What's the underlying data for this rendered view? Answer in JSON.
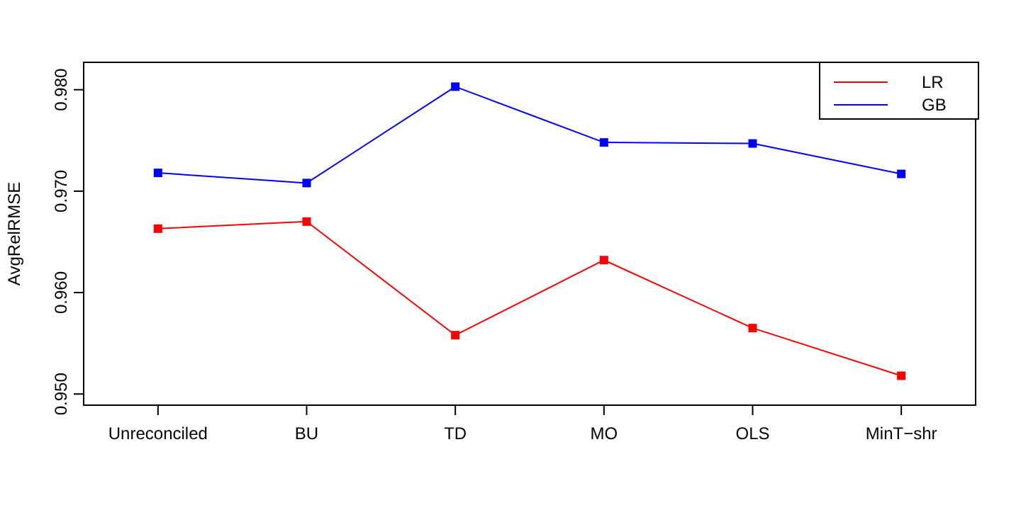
{
  "chart_data": {
    "type": "line",
    "ylabel": "AvgRelRMSE",
    "categories": [
      "Unreconciled",
      "BU",
      "TD",
      "MO",
      "OLS",
      "MinT−shr"
    ],
    "series": [
      {
        "name": "LR",
        "color": "#ff0000",
        "values": [
          0.9663,
          0.967,
          0.9558,
          0.9632,
          0.9565,
          0.9518
        ]
      },
      {
        "name": "GB",
        "color": "#0000ff",
        "values": [
          0.9718,
          0.9708,
          0.9803,
          0.9748,
          0.9747,
          0.9717
        ]
      }
    ],
    "ylim": [
      0.9489,
      0.9827
    ],
    "yticks": [
      {
        "value": 0.95,
        "label": "0.950"
      },
      {
        "value": 0.96,
        "label": "0.960"
      },
      {
        "value": 0.97,
        "label": "0.970"
      },
      {
        "value": 0.98,
        "label": "0.980"
      }
    ],
    "marker": "square",
    "line_style": "solid",
    "legend": "top right",
    "grid": false
  }
}
